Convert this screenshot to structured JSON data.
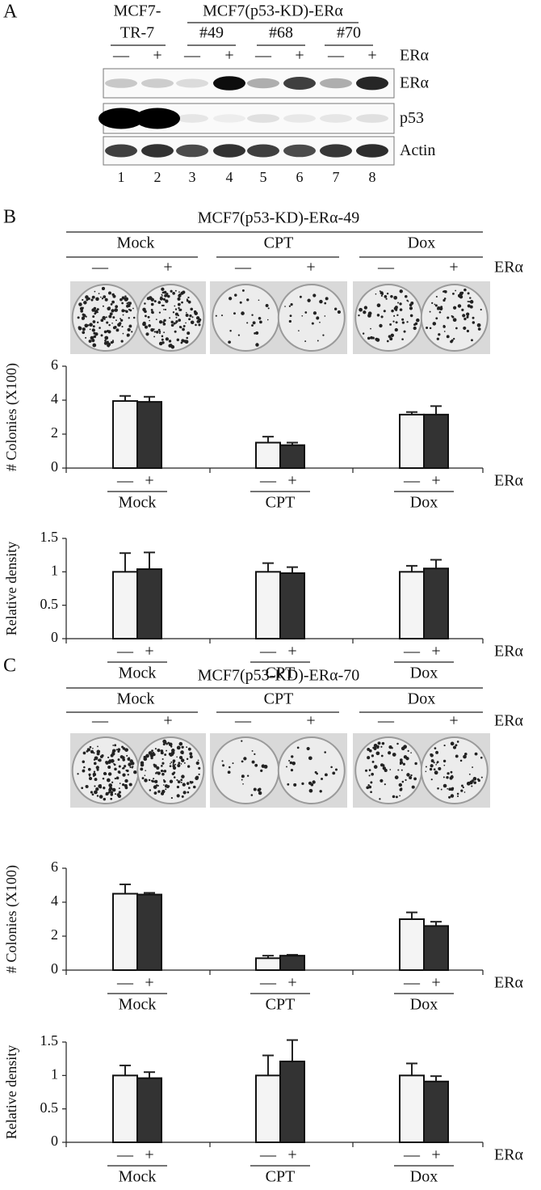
{
  "panels": {
    "a": {
      "letter": "A",
      "header_left": [
        "MCF7-",
        "TR-7"
      ],
      "header_group": "MCF7(p53-KD)-ERα",
      "clones": [
        "#49",
        "#68",
        "#70"
      ],
      "signs": [
        "—",
        "+"
      ],
      "sign_label": "ERα",
      "blots": [
        "ERα",
        "p53",
        "Actin"
      ],
      "lane_numbers": [
        1,
        2,
        3,
        4,
        5,
        6,
        7,
        8
      ]
    },
    "b": {
      "letter": "B",
      "title": "MCF7(p53-KD)-ERα-49",
      "treatments": [
        "Mock",
        "CPT",
        "Dox"
      ],
      "signs": [
        "—",
        "+"
      ],
      "sign_label": "ERα"
    },
    "c": {
      "letter": "C",
      "title": "MCF7(p53-KD)-ERα-70",
      "treatments": [
        "Mock",
        "CPT",
        "Dox"
      ],
      "signs": [
        "—",
        "+"
      ],
      "sign_label": "ERα"
    }
  },
  "chart_data": [
    {
      "type": "bar",
      "y_label": "# Colonies (X100)",
      "x_label": "ERα",
      "categories": [
        "Mock",
        "CPT",
        "Dox"
      ],
      "ylim": [
        0,
        6
      ],
      "yticks": [
        0,
        2,
        4,
        6
      ],
      "series": [
        {
          "name": "—",
          "color": "#f4f4f4",
          "values": [
            3.95,
            1.5,
            3.15
          ],
          "errors": [
            0.3,
            0.35,
            0.15
          ]
        },
        {
          "name": "+",
          "color": "#333333",
          "values": [
            3.9,
            1.35,
            3.15
          ],
          "errors": [
            0.3,
            0.15,
            0.5
          ]
        }
      ]
    },
    {
      "type": "bar",
      "y_label": "Relative density",
      "x_label": "ERα",
      "categories": [
        "Mock",
        "CPT",
        "Dox"
      ],
      "ylim": [
        0,
        1.5
      ],
      "yticks": [
        0,
        0.5,
        1,
        1.5
      ],
      "series": [
        {
          "name": "—",
          "color": "#f4f4f4",
          "values": [
            1,
            1,
            1
          ],
          "errors": [
            0.28,
            0.13,
            0.09
          ]
        },
        {
          "name": "+",
          "color": "#333333",
          "values": [
            1.04,
            0.98,
            1.05
          ],
          "errors": [
            0.25,
            0.09,
            0.13
          ]
        }
      ]
    },
    {
      "type": "bar",
      "y_label": "# Colonies (X100)",
      "x_label": "ERα",
      "categories": [
        "Mock",
        "CPT",
        "Dox"
      ],
      "ylim": [
        0,
        6
      ],
      "yticks": [
        0,
        2,
        4,
        6
      ],
      "series": [
        {
          "name": "—",
          "color": "#f4f4f4",
          "values": [
            4.5,
            0.7,
            3.0
          ],
          "errors": [
            0.55,
            0.15,
            0.4
          ]
        },
        {
          "name": "+",
          "color": "#333333",
          "values": [
            4.45,
            0.85,
            2.6
          ],
          "errors": [
            0.1,
            0.05,
            0.25
          ]
        }
      ]
    },
    {
      "type": "bar",
      "y_label": "Relative density",
      "x_label": "ERα",
      "categories": [
        "Mock",
        "CPT",
        "Dox"
      ],
      "ylim": [
        0,
        1.5
      ],
      "yticks": [
        0,
        0.5,
        1,
        1.5
      ],
      "series": [
        {
          "name": "—",
          "color": "#f4f4f4",
          "values": [
            1,
            1,
            1
          ],
          "errors": [
            0.15,
            0.3,
            0.18
          ]
        },
        {
          "name": "+",
          "color": "#333333",
          "values": [
            0.96,
            1.21,
            0.91
          ],
          "errors": [
            0.09,
            0.32,
            0.08
          ]
        }
      ]
    }
  ]
}
